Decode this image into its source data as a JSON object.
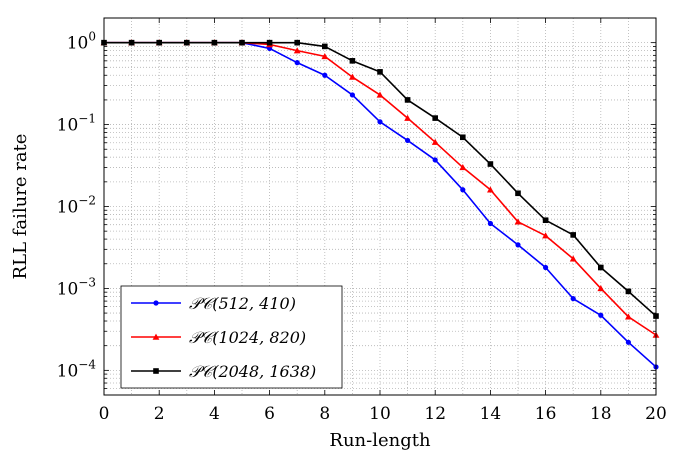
{
  "chart_data": {
    "type": "line",
    "title": "",
    "xlabel": "Run-length",
    "ylabel": "RLL failure rate",
    "xlim": [
      0,
      20
    ],
    "ylim": [
      5e-05,
      2
    ],
    "yscale": "log",
    "xticks": [
      0,
      2,
      4,
      6,
      8,
      10,
      12,
      14,
      16,
      18,
      20
    ],
    "xtick_labels": [
      "0",
      "2",
      "4",
      "6",
      "8",
      "10",
      "12",
      "14",
      "16",
      "18",
      "20"
    ],
    "yticks": [
      1,
      0.1,
      0.01,
      0.001,
      0.0001
    ],
    "ytick_labels": [
      {
        "base": "10",
        "exp": "0"
      },
      {
        "base": "10",
        "exp": "−1"
      },
      {
        "base": "10",
        "exp": "−2"
      },
      {
        "base": "10",
        "exp": "−3"
      },
      {
        "base": "10",
        "exp": "−4"
      }
    ],
    "grid": true,
    "legend_position": "bottom-left",
    "x": [
      0,
      1,
      2,
      3,
      4,
      5,
      6,
      7,
      8,
      9,
      10,
      11,
      12,
      13,
      14,
      15,
      16,
      17,
      18,
      19,
      20
    ],
    "series": [
      {
        "name": "𝒫𝒞(512, 410)",
        "color": "#0000ff",
        "marker": "circle",
        "values": [
          1,
          1,
          1,
          1,
          1,
          1,
          0.85,
          0.57,
          0.4,
          0.23,
          0.108,
          0.064,
          0.037,
          0.016,
          0.0062,
          0.0034,
          0.0018,
          0.00075,
          0.00047,
          0.00022,
          0.00011
        ]
      },
      {
        "name": "𝒫𝒞(1024, 820)",
        "color": "#ff0000",
        "marker": "triangle",
        "values": [
          1,
          1,
          1,
          1,
          1,
          1,
          0.95,
          0.8,
          0.68,
          0.38,
          0.23,
          0.12,
          0.061,
          0.03,
          0.016,
          0.0065,
          0.0044,
          0.0023,
          0.001,
          0.00045,
          0.00027
        ]
      },
      {
        "name": "𝒫𝒞(2048, 1638)",
        "color": "#000000",
        "marker": "square",
        "values": [
          1,
          1,
          1,
          1,
          1,
          1,
          1,
          1,
          0.9,
          0.6,
          0.44,
          0.2,
          0.12,
          0.07,
          0.033,
          0.0145,
          0.0068,
          0.0045,
          0.0018,
          0.00092,
          0.00046
        ]
      }
    ]
  }
}
